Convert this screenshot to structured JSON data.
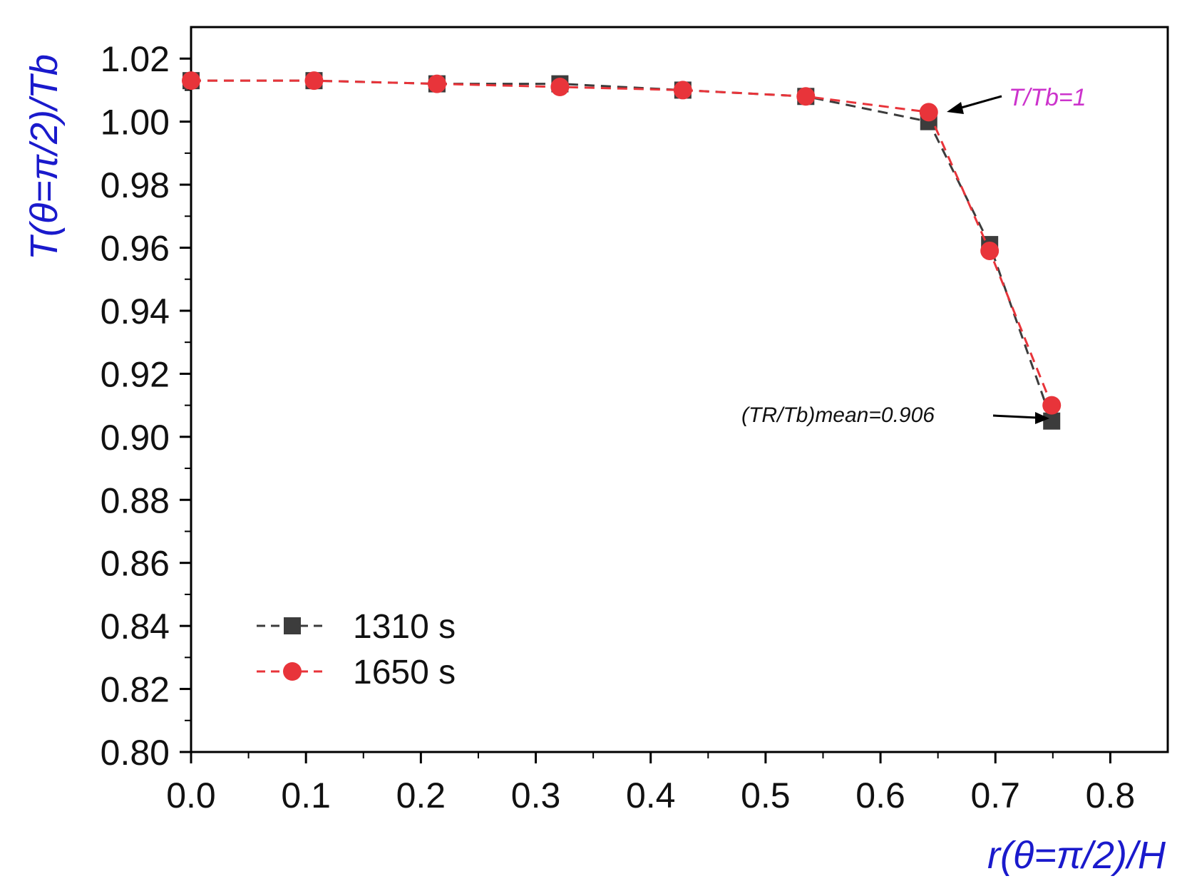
{
  "chart_data": {
    "type": "line",
    "xlabel": "r(θ=π/2)/H",
    "ylabel": "T(θ=π/2)/Tb",
    "xlim": [
      0.0,
      0.85
    ],
    "ylim": [
      0.8,
      1.03
    ],
    "xticks": [
      0.0,
      0.1,
      0.2,
      0.3,
      0.4,
      0.5,
      0.6,
      0.7,
      0.8
    ],
    "xtick_labels": [
      "0.0",
      "0.1",
      "0.2",
      "0.3",
      "0.4",
      "0.5",
      "0.6",
      "0.7",
      "0.8"
    ],
    "yticks": [
      0.8,
      0.82,
      0.84,
      0.86,
      0.88,
      0.9,
      0.92,
      0.94,
      0.96,
      0.98,
      1.0,
      1.02
    ],
    "ytick_labels": [
      "0.80",
      "0.82",
      "0.84",
      "0.86",
      "0.88",
      "0.90",
      "0.92",
      "0.94",
      "0.96",
      "0.98",
      "1.00",
      "1.02"
    ],
    "grid": false,
    "legend_position": "bottom-left",
    "series": [
      {
        "name": "1310 s",
        "marker": "square",
        "color": "#3c3c3c",
        "x": [
          0.0,
          0.107,
          0.214,
          0.321,
          0.428,
          0.535,
          0.642,
          0.695,
          0.749
        ],
        "y": [
          1.013,
          1.013,
          1.012,
          1.012,
          1.01,
          1.008,
          1.0,
          0.961,
          0.905
        ]
      },
      {
        "name": "1650 s",
        "marker": "circle",
        "color": "#e8343a",
        "x": [
          0.0,
          0.107,
          0.214,
          0.321,
          0.428,
          0.535,
          0.642,
          0.695,
          0.749
        ],
        "y": [
          1.013,
          1.013,
          1.012,
          1.011,
          1.01,
          1.008,
          1.003,
          0.959,
          0.91
        ]
      }
    ],
    "annotations": {
      "tb_line": {
        "text": "T/Tb=1",
        "color": "#cc33cc",
        "x": 0.642,
        "y": 1.002
      },
      "mean": {
        "text": "(TR/Tb)mean=0.906",
        "x": 0.749,
        "y": 0.906
      }
    },
    "colors": {
      "axis_label": "#1a1acc",
      "axis": "#000000"
    }
  }
}
